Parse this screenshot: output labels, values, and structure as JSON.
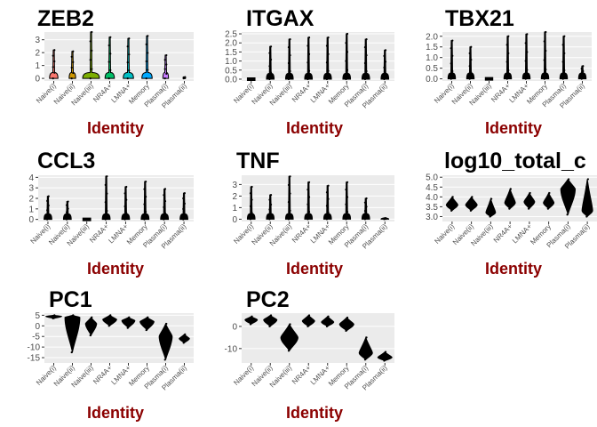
{
  "chart_data": [
    {
      "type": "violin",
      "title": "ZEB2",
      "xlabel": "Identity",
      "ylim": [
        -0.2,
        3.6
      ],
      "yticks": [
        0,
        1,
        2,
        3
      ],
      "ytick_labels": [
        "0",
        "1",
        "2",
        "3"
      ],
      "categories": [
        "Naive(i)",
        "Naive(ii)",
        "Naive(iii)",
        "NR4A+",
        "LMNA+",
        "Memory",
        "Plasma(i)",
        "Plasma(ii)"
      ],
      "max": [
        2.2,
        2.1,
        3.6,
        3.2,
        3.1,
        3.3,
        1.8,
        0.1
      ],
      "median": [
        0,
        0,
        0,
        0,
        0,
        0,
        0,
        0
      ],
      "width": [
        0.45,
        0.35,
        0.9,
        0.5,
        0.55,
        0.55,
        0.3,
        0.1
      ],
      "fill": [
        "#F8766D",
        "#CD9600",
        "#7CAE00",
        "#00BE67",
        "#00BFC4",
        "#00A9FF",
        "#C77CFF",
        "#FF61CC"
      ]
    },
    {
      "type": "violin",
      "title": "ITGAX",
      "xlabel": "Identity",
      "ylim": [
        -0.1,
        2.6
      ],
      "yticks": [
        0,
        0.5,
        1,
        1.5,
        2,
        2.5
      ],
      "ytick_labels": [
        "0.0",
        "0.5",
        "1.0",
        "1.5",
        "2.0",
        "2.5"
      ],
      "categories": [
        "Naive(i)",
        "Naive(ii)",
        "Naive(iii)",
        "NR4A+",
        "LMNA+",
        "Memory",
        "Plasma(i)",
        "Plasma(ii)"
      ],
      "max": [
        0,
        1.8,
        2.2,
        2.3,
        2.3,
        2.5,
        2.2,
        1.6
      ],
      "median": [
        0,
        0,
        0,
        0,
        0,
        0,
        0,
        0
      ],
      "width": [
        0.4,
        0.4,
        0.4,
        0.4,
        0.4,
        0.4,
        0.4,
        0.4
      ],
      "fill": [
        "#000000",
        "#000000",
        "#000000",
        "#000000",
        "#000000",
        "#000000",
        "#000000",
        "#000000"
      ]
    },
    {
      "type": "violin",
      "title": "TBX21",
      "xlabel": "Identity",
      "ylim": [
        -0.1,
        2.2
      ],
      "yticks": [
        0,
        0.5,
        1,
        1.5,
        2
      ],
      "ytick_labels": [
        "0.0",
        "0.5",
        "1.0",
        "1.5",
        "2.0"
      ],
      "categories": [
        "Naive(i)",
        "Naive(ii)",
        "Naive(iii)",
        "NR4A+",
        "LMNA+",
        "Memory",
        "Plasma(i)",
        "Plasma(ii)"
      ],
      "max": [
        1.8,
        1.5,
        0,
        2.0,
        2.1,
        2.2,
        2.0,
        0.6
      ],
      "median": [
        0,
        0,
        0,
        0,
        0,
        0,
        0,
        0
      ],
      "width": [
        0.4,
        0.4,
        0.4,
        0.4,
        0.4,
        0.4,
        0.4,
        0.4
      ],
      "fill": [
        "#000000",
        "#000000",
        "#000000",
        "#000000",
        "#000000",
        "#000000",
        "#000000",
        "#000000"
      ]
    },
    {
      "type": "violin",
      "title": "CCL3",
      "xlabel": "Identity",
      "ylim": [
        -0.2,
        4.2
      ],
      "yticks": [
        0,
        1,
        2,
        3,
        4
      ],
      "ytick_labels": [
        "0",
        "1",
        "2",
        "3",
        "4"
      ],
      "categories": [
        "Naive(i)",
        "Naive(ii)",
        "Naive(iii)",
        "NR4A+",
        "LMNA+",
        "Memory",
        "Plasma(i)",
        "Plasma(ii)"
      ],
      "max": [
        2.2,
        1.7,
        0,
        4.1,
        3.1,
        3.6,
        2.9,
        2.5
      ],
      "median": [
        0,
        0,
        0,
        0,
        0,
        0,
        0,
        0
      ],
      "width": [
        0.4,
        0.4,
        0.4,
        0.4,
        0.4,
        0.4,
        0.4,
        0.4
      ],
      "fill": [
        "#000000",
        "#000000",
        "#000000",
        "#000000",
        "#000000",
        "#000000",
        "#000000",
        "#000000"
      ]
    },
    {
      "type": "violin",
      "title": "TNF",
      "xlabel": "Identity",
      "ylim": [
        -0.2,
        3.8
      ],
      "yticks": [
        0,
        1,
        2,
        3
      ],
      "ytick_labels": [
        "0",
        "1",
        "2",
        "3"
      ],
      "categories": [
        "Naive(i)",
        "Naive(ii)",
        "Naive(iii)",
        "NR4A+",
        "LMNA+",
        "Memory",
        "Plasma(i)",
        "Plasma(ii)"
      ],
      "max": [
        2.8,
        2.1,
        3.7,
        3.2,
        2.9,
        3.2,
        1.8,
        0.1
      ],
      "median": [
        0,
        0,
        0,
        0,
        0,
        0,
        0,
        0
      ],
      "width": [
        0.4,
        0.4,
        0.4,
        0.4,
        0.4,
        0.4,
        0.4,
        0.4
      ],
      "fill": [
        "#000000",
        "#000000",
        "#000000",
        "#000000",
        "#000000",
        "#000000",
        "#000000",
        "#000000"
      ]
    },
    {
      "type": "violin",
      "title": "log10_total_c",
      "xlabel": "Identity",
      "ylim": [
        2.75,
        5.1
      ],
      "yticks": [
        3,
        3.5,
        4,
        4.5,
        5
      ],
      "ytick_labels": [
        "3.0",
        "3.5",
        "4.0",
        "4.5",
        "5.0"
      ],
      "categories": [
        "Naive(i)",
        "Naive(ii)",
        "Naive(iii)",
        "NR4A+",
        "LMNA+",
        "Memory",
        "Plasma(i)",
        "Plasma(ii)"
      ],
      "min": [
        3.3,
        3.3,
        3.0,
        3.4,
        3.4,
        3.4,
        3.1,
        3.0
      ],
      "max": [
        4.0,
        4.0,
        3.9,
        4.4,
        4.2,
        4.2,
        4.9,
        4.9
      ],
      "median": [
        3.6,
        3.6,
        3.2,
        3.7,
        3.75,
        3.7,
        4.4,
        3.3
      ],
      "width": [
        0.6,
        0.6,
        0.5,
        0.55,
        0.55,
        0.55,
        0.75,
        0.55
      ],
      "fill": [
        "#000000",
        "#000000",
        "#000000",
        "#000000",
        "#000000",
        "#000000",
        "#000000",
        "#000000"
      ]
    },
    {
      "type": "violin",
      "title": "PC1",
      "xlabel": "Identity",
      "ylim": [
        -17.5,
        6
      ],
      "yticks": [
        5,
        0,
        -5,
        -10,
        -15
      ],
      "ytick_labels": [
        "5",
        "0",
        "-5",
        "-10",
        "-15"
      ],
      "categories": [
        "Naive(i)",
        "Naive(ii)",
        "Naive(iii)",
        "NR4A+",
        "LMNA+",
        "Memory",
        "Plasma(i)",
        "Plasma(ii)"
      ],
      "min": [
        3.5,
        -12.5,
        -4.5,
        0,
        -1,
        -2,
        -16,
        -8
      ],
      "max": [
        5,
        5,
        4,
        5,
        4,
        4,
        1,
        -4
      ],
      "median": [
        4.5,
        4,
        1,
        3,
        2.5,
        2,
        -5,
        -6
      ],
      "width": [
        0.85,
        0.8,
        0.6,
        0.75,
        0.7,
        0.75,
        0.7,
        0.55
      ],
      "fill": [
        "#000000",
        "#000000",
        "#000000",
        "#000000",
        "#000000",
        "#000000",
        "#000000",
        "#000000"
      ]
    },
    {
      "type": "violin",
      "title": "PC2",
      "xlabel": "Identity",
      "ylim": [
        -16.5,
        6
      ],
      "yticks": [
        0,
        -10
      ],
      "ytick_labels": [
        "0",
        "-10"
      ],
      "categories": [
        "Naive(i)",
        "Naive(ii)",
        "Naive(iii)",
        "NR4A+",
        "LMNA+",
        "Memory",
        "Plasma(i)",
        "Plasma(ii)"
      ],
      "min": [
        1,
        0,
        -11,
        0,
        0,
        -2,
        -15,
        -15.5
      ],
      "max": [
        4.5,
        5,
        1,
        5,
        4.5,
        4,
        -5,
        -11.5
      ],
      "median": [
        3,
        3,
        -5,
        2.5,
        2,
        1,
        -12,
        -14
      ],
      "width": [
        0.65,
        0.7,
        0.9,
        0.65,
        0.65,
        0.75,
        0.7,
        0.75
      ],
      "fill": [
        "#000000",
        "#000000",
        "#000000",
        "#000000",
        "#000000",
        "#000000",
        "#000000",
        "#000000"
      ]
    }
  ],
  "colors": {
    "panel_bg": "#ebebeb",
    "grid": "#ffffff",
    "xlabel": "#8b0000",
    "tick_text": "#4d4d4d",
    "outline": "#000000"
  }
}
